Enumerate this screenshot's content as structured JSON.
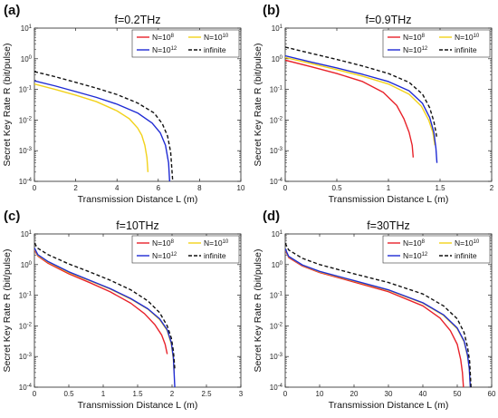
{
  "chart_data": [
    {
      "type": "line",
      "panel_label": "(a)",
      "title": "f=0.2THz",
      "xlabel": "Transmission Distance L (m)",
      "ylabel": "Secret Key Rate R (bit/pulse)",
      "xlim": [
        0,
        10
      ],
      "xticks": [
        "0",
        "2",
        "4",
        "6",
        "8",
        "10"
      ],
      "ylim": [
        0.0001,
        10
      ],
      "yscale": "log",
      "legend_position": "top-right",
      "series": [
        {
          "name": "N=10^8",
          "color": "#e8222a",
          "x": [],
          "y": []
        },
        {
          "name": "N=10^10",
          "color": "#f2d21b",
          "x": [
            0,
            1,
            2,
            3,
            4,
            4.6,
            5.0,
            5.2,
            5.35,
            5.45,
            5.5
          ],
          "y": [
            0.15,
            0.1,
            0.065,
            0.04,
            0.02,
            0.011,
            0.0055,
            0.0032,
            0.0015,
            0.0006,
            0.0002
          ]
        },
        {
          "name": "N=10^12",
          "color": "#1f2bd4",
          "x": [
            0,
            1,
            2,
            3,
            4,
            5,
            5.7,
            6.1,
            6.35,
            6.5,
            6.55
          ],
          "y": [
            0.19,
            0.13,
            0.085,
            0.055,
            0.033,
            0.017,
            0.008,
            0.0038,
            0.0015,
            0.0004,
            0.0001
          ]
        },
        {
          "name": "infinite",
          "color": "#111111",
          "dash": true,
          "x": [
            0,
            1,
            2,
            3,
            4,
            5,
            5.8,
            6.2,
            6.45,
            6.6,
            6.7
          ],
          "y": [
            0.38,
            0.26,
            0.17,
            0.11,
            0.068,
            0.036,
            0.017,
            0.0075,
            0.003,
            0.0009,
            0.0001
          ]
        }
      ]
    },
    {
      "type": "line",
      "panel_label": "(b)",
      "title": "f=0.9THz",
      "xlabel": "Transmission Distance L (m)",
      "ylabel": "Secret Key Rate R (bit/pulse)",
      "xlim": [
        0,
        2
      ],
      "xticks": [
        "0",
        "0.5",
        "1",
        "1.5",
        "2"
      ],
      "ylim": [
        0.0001,
        10
      ],
      "yscale": "log",
      "legend_position": "top-right",
      "series": [
        {
          "name": "N=10^8",
          "color": "#e8222a",
          "x": [
            0,
            0.25,
            0.5,
            0.75,
            0.95,
            1.08,
            1.15,
            1.2,
            1.23,
            1.24
          ],
          "y": [
            0.9,
            0.55,
            0.33,
            0.18,
            0.08,
            0.03,
            0.011,
            0.004,
            0.0015,
            0.0006
          ]
        },
        {
          "name": "N=10^10",
          "color": "#f2d21b",
          "x": [
            0,
            0.25,
            0.5,
            0.75,
            1.0,
            1.2,
            1.32,
            1.39,
            1.43,
            1.45
          ],
          "y": [
            1.1,
            0.7,
            0.44,
            0.27,
            0.15,
            0.07,
            0.028,
            0.01,
            0.004,
            0.0015
          ]
        },
        {
          "name": "N=10^12",
          "color": "#1f2bd4",
          "x": [
            0,
            0.25,
            0.5,
            0.75,
            1.0,
            1.2,
            1.33,
            1.4,
            1.44,
            1.46,
            1.47
          ],
          "y": [
            1.25,
            0.78,
            0.5,
            0.31,
            0.18,
            0.09,
            0.035,
            0.012,
            0.004,
            0.0012,
            0.0004
          ]
        },
        {
          "name": "infinite",
          "color": "#111111",
          "dash": true,
          "x": [
            0,
            0.25,
            0.5,
            0.75,
            1.0,
            1.2,
            1.33,
            1.4,
            1.44,
            1.46,
            1.47
          ],
          "y": [
            2.4,
            1.5,
            0.95,
            0.58,
            0.33,
            0.17,
            0.07,
            0.025,
            0.009,
            0.004,
            0.0025
          ]
        }
      ]
    },
    {
      "type": "line",
      "panel_label": "(c)",
      "title": "f=10THz",
      "xlabel": "Transmission Distance L (m)",
      "ylabel": "Secret Key Rate R (bit/pulse)",
      "xlim": [
        0,
        3
      ],
      "xticks": [
        "0",
        "0.5",
        "1",
        "1.5",
        "2",
        "2.5",
        "3"
      ],
      "ylim": [
        0.0001,
        10
      ],
      "yscale": "log",
      "legend_position": "top-right",
      "series": [
        {
          "name": "N=10^8",
          "color": "#e8222a",
          "x": [
            0,
            0.05,
            0.2,
            0.5,
            0.8,
            1.1,
            1.4,
            1.6,
            1.75,
            1.85,
            1.9,
            1.93
          ],
          "y": [
            3.0,
            1.9,
            1.1,
            0.5,
            0.26,
            0.13,
            0.055,
            0.025,
            0.011,
            0.005,
            0.0025,
            0.0012
          ]
        },
        {
          "name": "N=10^10",
          "color": "#f2d21b",
          "x": [
            0,
            0.05,
            0.2,
            0.5,
            0.8,
            1.1,
            1.4,
            1.65,
            1.82,
            1.93,
            1.99,
            2.02,
            2.03
          ],
          "y": [
            3.3,
            2.0,
            1.2,
            0.55,
            0.3,
            0.16,
            0.075,
            0.035,
            0.016,
            0.007,
            0.0025,
            0.0008,
            0.0003
          ]
        },
        {
          "name": "N=10^12",
          "color": "#1f2bd4",
          "x": [
            0,
            0.05,
            0.2,
            0.5,
            0.8,
            1.1,
            1.4,
            1.65,
            1.82,
            1.93,
            1.99,
            2.02,
            2.04
          ],
          "y": [
            3.5,
            2.1,
            1.25,
            0.58,
            0.31,
            0.165,
            0.078,
            0.036,
            0.017,
            0.0075,
            0.0028,
            0.0009,
            0.0001
          ]
        },
        {
          "name": "infinite",
          "color": "#111111",
          "dash": true,
          "x": [
            0,
            0.05,
            0.2,
            0.5,
            0.8,
            1.1,
            1.4,
            1.65,
            1.82,
            1.93,
            1.99,
            2.02,
            2.04
          ],
          "y": [
            5.0,
            3.4,
            2.1,
            1.05,
            0.58,
            0.31,
            0.15,
            0.065,
            0.027,
            0.01,
            0.004,
            0.0015,
            0.0004
          ]
        }
      ]
    },
    {
      "type": "line",
      "panel_label": "(d)",
      "title": "f=30THz",
      "xlabel": "Transmission Distance L (m)",
      "ylabel": "Secret Key Rate R (bit/pulse)",
      "xlim": [
        0,
        60
      ],
      "xticks": [
        "0",
        "10",
        "20",
        "30",
        "40",
        "50",
        "60"
      ],
      "ylim": [
        0.0001,
        10
      ],
      "yscale": "log",
      "legend_position": "top-right",
      "series": [
        {
          "name": "N=10^8",
          "color": "#e8222a",
          "x": [
            0,
            1,
            5,
            10,
            20,
            30,
            40,
            45,
            48,
            50,
            51,
            51.5,
            51.8
          ],
          "y": [
            3.0,
            1.7,
            0.9,
            0.55,
            0.27,
            0.13,
            0.045,
            0.018,
            0.007,
            0.0025,
            0.0008,
            0.0003,
            0.0001
          ]
        },
        {
          "name": "N=10^10",
          "color": "#f2d21b",
          "x": [
            0,
            1,
            5,
            10,
            20,
            30,
            40,
            46,
            50,
            52,
            53,
            53.5,
            53.8
          ],
          "y": [
            3.2,
            1.8,
            0.95,
            0.58,
            0.29,
            0.145,
            0.055,
            0.022,
            0.008,
            0.003,
            0.001,
            0.0004,
            0.0001
          ]
        },
        {
          "name": "N=10^12",
          "color": "#1f2bd4",
          "x": [
            0,
            1,
            5,
            10,
            20,
            30,
            40,
            46,
            50,
            52,
            53,
            53.5,
            53.8
          ],
          "y": [
            3.3,
            1.85,
            0.97,
            0.6,
            0.3,
            0.15,
            0.057,
            0.023,
            0.0085,
            0.0032,
            0.0011,
            0.0004,
            0.0001
          ]
        },
        {
          "name": "infinite",
          "color": "#111111",
          "dash": true,
          "x": [
            0,
            1,
            5,
            10,
            20,
            30,
            40,
            46,
            50,
            52,
            53,
            53.6,
            54
          ],
          "y": [
            5.0,
            3.0,
            1.6,
            1.0,
            0.5,
            0.26,
            0.11,
            0.045,
            0.017,
            0.006,
            0.002,
            0.0007,
            0.0001
          ]
        }
      ]
    }
  ]
}
